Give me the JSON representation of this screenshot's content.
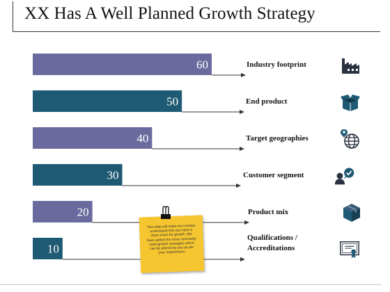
{
  "title": "XX Has A Well Planned Growth Strategy",
  "note": {
    "text": "This slide will make the investor understand that you have a clear vision for growth. We have added the most commonly used growth strategies which can be altered by you as per your requirement."
  },
  "colors": {
    "purple": "#6a6a9e",
    "teal": "#1e5a73",
    "arrow": "#333333"
  },
  "chart_data": {
    "type": "bar",
    "orientation": "horizontal",
    "title": "XX Has A Well Planned Growth Strategy",
    "categories": [
      "Industry footprint",
      "End product",
      "Target geographies",
      "Customer segment",
      "Product mix",
      "Qualifications / Accreditations"
    ],
    "values": [
      60,
      50,
      40,
      30,
      20,
      10
    ],
    "bar_colors": [
      "#6a6a9e",
      "#1e5a73",
      "#6a6a9e",
      "#1e5a73",
      "#6a6a9e",
      "#1e5a73"
    ],
    "icons": [
      "factory-icon",
      "open-box-icon",
      "globe-pin-icon",
      "person-check-icon",
      "cube-icon",
      "certificate-icon"
    ],
    "xlim": [
      0,
      60
    ],
    "grid": false,
    "legend": "none"
  }
}
